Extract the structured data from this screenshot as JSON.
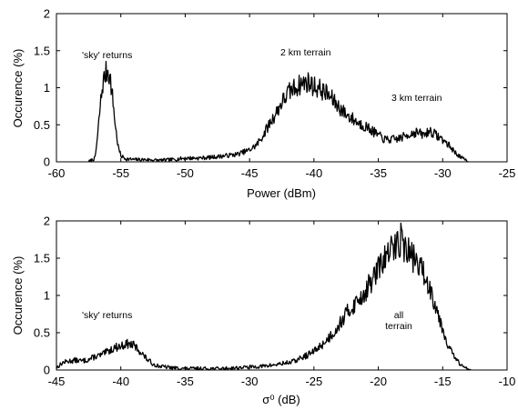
{
  "chart_data": [
    {
      "type": "line",
      "xlabel": "Power (dBm)",
      "ylabel": "Occurence (%)",
      "xlim": [
        -60,
        -25
      ],
      "ylim": [
        0,
        2
      ],
      "xticks": [
        "-60",
        "-55",
        "-50",
        "-45",
        "-40",
        "-35",
        "-30",
        "-25"
      ],
      "yticks": [
        "0",
        "0.5",
        "1",
        "1.5",
        "2"
      ],
      "grid": false,
      "annotations": [
        "'sky' returns",
        "2 km terrain",
        "3 km terrain"
      ],
      "series": [
        {
          "x": [
            -57.5,
            -57.0,
            -56.8,
            -56.6,
            -56.4,
            -56.2,
            -56.0,
            -55.8,
            -55.6,
            -55.4,
            -55.2,
            -55.0,
            -54.6,
            -54.0,
            -53.0,
            -52.0,
            -51.0,
            -50.0,
            -49.0,
            -48.0,
            -47.0,
            -46.0,
            -45.0,
            -44.5,
            -44.0,
            -43.5,
            -43.0,
            -42.5,
            -42.0,
            -41.5,
            -41.0,
            -40.5,
            -40.0,
            -39.5,
            -39.0,
            -38.5,
            -38.0,
            -37.5,
            -37.0,
            -36.5,
            -36.0,
            -35.5,
            -35.0,
            -34.5,
            -34.0,
            -33.5,
            -33.0,
            -32.5,
            -32.0,
            -31.5,
            -31.0,
            -30.5,
            -30.0,
            -29.5,
            -29.0,
            -28.5,
            -28.2,
            -28.0
          ],
          "y": [
            0.0,
            0.05,
            0.35,
            0.75,
            1.05,
            1.18,
            1.25,
            1.1,
            0.8,
            0.45,
            0.2,
            0.08,
            0.04,
            0.03,
            0.03,
            0.02,
            0.03,
            0.05,
            0.05,
            0.06,
            0.08,
            0.1,
            0.16,
            0.22,
            0.34,
            0.5,
            0.64,
            0.8,
            0.93,
            1.0,
            1.05,
            1.08,
            1.02,
            0.98,
            0.92,
            0.83,
            0.73,
            0.64,
            0.58,
            0.52,
            0.48,
            0.42,
            0.36,
            0.3,
            0.3,
            0.31,
            0.34,
            0.38,
            0.4,
            0.36,
            0.42,
            0.36,
            0.3,
            0.22,
            0.12,
            0.05,
            0.02,
            0.0
          ]
        }
      ]
    },
    {
      "type": "line",
      "xlabel": "σ⁰ (dB)",
      "ylabel": "Occurence (%)",
      "xlim": [
        -45,
        -10
      ],
      "ylim": [
        0,
        2
      ],
      "xticks": [
        "-45",
        "-40",
        "-35",
        "-30",
        "-25",
        "-20",
        "-15",
        "-10"
      ],
      "yticks": [
        "0",
        "0.5",
        "1",
        "1.5",
        "2"
      ],
      "grid": false,
      "annotations": [
        "'sky' returns",
        "all",
        "terrain"
      ],
      "series": [
        {
          "x": [
            -45.0,
            -44.5,
            -44.0,
            -43.5,
            -43.0,
            -42.5,
            -42.0,
            -41.5,
            -41.0,
            -40.5,
            -40.0,
            -39.5,
            -39.0,
            -38.5,
            -38.0,
            -37.5,
            -37.0,
            -36.5,
            -36.0,
            -35.0,
            -34.0,
            -33.0,
            -32.0,
            -31.0,
            -30.0,
            -29.0,
            -28.0,
            -27.0,
            -26.5,
            -26.0,
            -25.5,
            -25.0,
            -24.5,
            -24.0,
            -23.5,
            -23.0,
            -22.5,
            -22.0,
            -21.5,
            -21.0,
            -20.5,
            -20.0,
            -19.5,
            -19.0,
            -18.5,
            -18.2,
            -18.0,
            -17.5,
            -17.0,
            -16.5,
            -16.0,
            -15.5,
            -15.0,
            -14.5,
            -14.0,
            -13.5,
            -13.0,
            -12.8
          ],
          "y": [
            0.03,
            0.1,
            0.12,
            0.13,
            0.12,
            0.14,
            0.18,
            0.2,
            0.25,
            0.3,
            0.32,
            0.35,
            0.33,
            0.25,
            0.15,
            0.08,
            0.05,
            0.04,
            0.03,
            0.02,
            0.02,
            0.02,
            0.02,
            0.03,
            0.04,
            0.05,
            0.07,
            0.1,
            0.12,
            0.16,
            0.2,
            0.25,
            0.32,
            0.4,
            0.5,
            0.62,
            0.75,
            0.85,
            0.95,
            1.05,
            1.2,
            1.35,
            1.5,
            1.6,
            1.7,
            1.78,
            1.65,
            1.55,
            1.45,
            1.3,
            1.1,
            0.85,
            0.55,
            0.3,
            0.15,
            0.05,
            0.02,
            0.0
          ]
        }
      ]
    }
  ]
}
